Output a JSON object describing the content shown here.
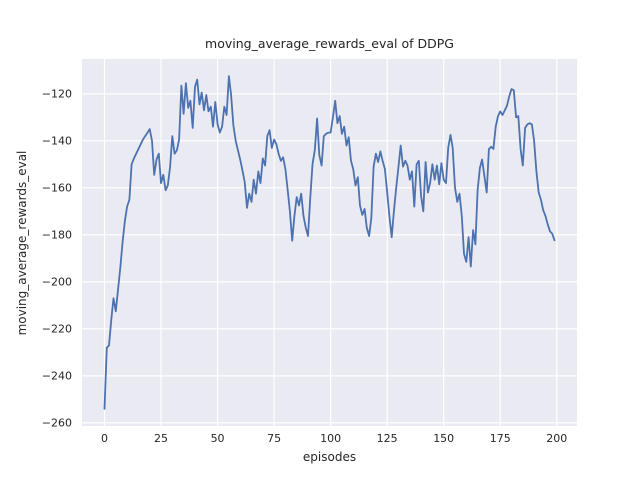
{
  "title": "moving_average_rewards_eval of DDPG",
  "x_axis": {
    "label": "episodes",
    "ticks": [
      0,
      25,
      50,
      75,
      100,
      125,
      150,
      175,
      200
    ],
    "range": [
      -9.95,
      208.95
    ]
  },
  "y_axis": {
    "label": "moving_average_rewards_eval",
    "ticks": [
      -120,
      -140,
      -160,
      -180,
      -200,
      -220,
      -240,
      -260
    ],
    "range": [
      -261.3,
      -105.2
    ]
  },
  "colors": {
    "line": "#4c72b0",
    "plot_bg": "#eaeaf2",
    "grid": "#ffffff",
    "text": "#262626"
  },
  "chart_data": {
    "type": "line",
    "title": "moving_average_rewards_eval of DDPG",
    "xlabel": "episodes",
    "ylabel": "moving_average_rewards_eval",
    "xlim": [
      -9.95,
      208.95
    ],
    "ylim": [
      -261.3,
      -105.2
    ],
    "grid": true,
    "legend": false,
    "x_start": 0,
    "x_step": 1,
    "values": [
      -254,
      -228,
      -227,
      -216,
      -207,
      -212.5,
      -203,
      -194,
      -183,
      -174,
      -168,
      -165,
      -150,
      -147.5,
      -145.5,
      -143.5,
      -141.5,
      -139.5,
      -138,
      -136.5,
      -135,
      -140,
      -154.5,
      -148,
      -145.5,
      -158,
      -154.5,
      -161,
      -159,
      -151,
      -138,
      -145.5,
      -144,
      -139.5,
      -116.5,
      -128.5,
      -115.5,
      -126,
      -123,
      -134.5,
      -117,
      -114,
      -124.5,
      -119.5,
      -127,
      -120.5,
      -127.5,
      -125.5,
      -134,
      -123.5,
      -133,
      -136.5,
      -134,
      -125.5,
      -129,
      -112.5,
      -120.5,
      -133.5,
      -140,
      -144,
      -148,
      -152.5,
      -157.5,
      -168.5,
      -162.5,
      -166,
      -156.5,
      -162.5,
      -153,
      -158,
      -147.5,
      -150.5,
      -138,
      -135.5,
      -143,
      -139.5,
      -141.5,
      -145.5,
      -148.5,
      -147,
      -152,
      -161,
      -170,
      -182.5,
      -172,
      -164,
      -167.5,
      -162.5,
      -172,
      -177,
      -180.5,
      -164,
      -150,
      -144,
      -130.5,
      -146,
      -150.5,
      -138,
      -137,
      -136.5,
      -136.5,
      -130,
      -123,
      -132.5,
      -129.5,
      -137,
      -134,
      -142,
      -138.5,
      -148.5,
      -152,
      -159,
      -155.5,
      -167.5,
      -171.5,
      -169,
      -177,
      -180.5,
      -173,
      -151,
      -145.5,
      -149,
      -144.5,
      -148.5,
      -152,
      -162,
      -172,
      -181,
      -170,
      -160,
      -151,
      -142,
      -151,
      -148.5,
      -150.5,
      -156.5,
      -153,
      -168,
      -150,
      -148.5,
      -163.5,
      -170,
      -149,
      -162,
      -158,
      -150,
      -156.5,
      -150.5,
      -158.5,
      -149.5,
      -156.5,
      -158,
      -143,
      -137.5,
      -143,
      -160,
      -166,
      -162.5,
      -172,
      -188,
      -191.5,
      -181,
      -193.5,
      -178,
      -184,
      -161,
      -151.5,
      -148,
      -155,
      -162,
      -143.5,
      -142.5,
      -143.5,
      -134,
      -129.5,
      -127.5,
      -129,
      -127,
      -125,
      -121,
      -118,
      -118.5,
      -130,
      -129.5,
      -143.5,
      -150.5,
      -134.5,
      -133,
      -132.5,
      -133,
      -140,
      -153,
      -162,
      -165,
      -169.5,
      -172,
      -175.5,
      -178.5,
      -179.5,
      -182.3
    ]
  }
}
